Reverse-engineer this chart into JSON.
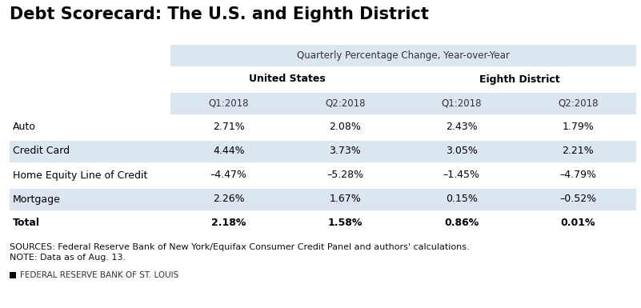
{
  "title": "Debt Scorecard: The U.S. and Eighth District",
  "subtitle": "Quarterly Percentage Change, Year-over-Year",
  "col_group_headers": [
    "United States",
    "Eighth District"
  ],
  "col_headers": [
    "Q1:2018",
    "Q2:2018",
    "Q1:2018",
    "Q2:2018"
  ],
  "row_labels": [
    "Auto",
    "Credit Card",
    "Home Equity Line of Credit",
    "Mortgage",
    "Total"
  ],
  "row_bold": [
    false,
    false,
    false,
    false,
    true
  ],
  "data": [
    [
      "2.71%",
      "2.08%",
      "2.43%",
      "1.79%"
    ],
    [
      "4.44%",
      "3.73%",
      "3.05%",
      "2.21%"
    ],
    [
      "–4.47%",
      "–5.28%",
      "–1.45%",
      "–4.79%"
    ],
    [
      "2.26%",
      "1.67%",
      "0.15%",
      "–0.52%"
    ],
    [
      "2.18%",
      "1.58%",
      "0.86%",
      "0.01%"
    ]
  ],
  "sources_text": "SOURCES: Federal Reserve Bank of New York/Equifax Consumer Credit Panel and authors' calculations.",
  "note_text": "NOTE: Data as of Aug. 13.",
  "footer_text": "FEDERAL RESERVE BANK OF ST. LOUIS",
  "bg_light": "#dce6f0",
  "bg_white": "#ffffff",
  "title_fontsize": 15,
  "subtitle_fontsize": 8.5,
  "header_fontsize": 9,
  "data_fontsize": 9,
  "footnote_fontsize": 8,
  "footer_fontsize": 7.5
}
